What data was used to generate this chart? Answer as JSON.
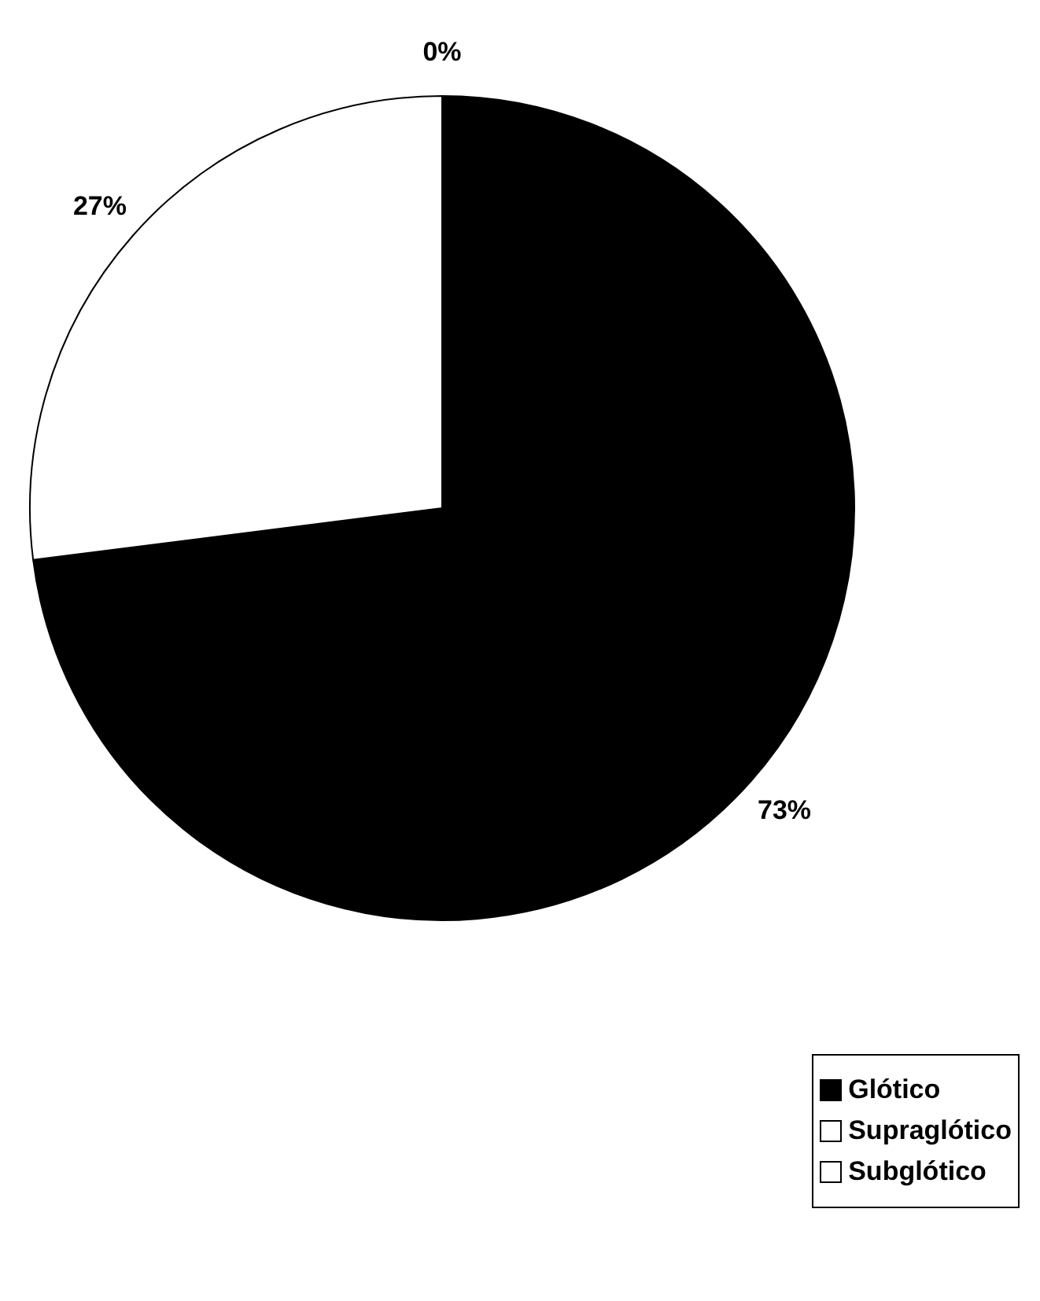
{
  "chart_data": {
    "type": "pie",
    "categories": [
      "Glótico",
      "Supraglótico",
      "Subglótico"
    ],
    "values": [
      73,
      27,
      0
    ],
    "colors": [
      "#000000",
      "#ffffff",
      "#ffffff"
    ],
    "value_labels": [
      "73%",
      "27%",
      "0%"
    ],
    "legend": "bottom right"
  }
}
